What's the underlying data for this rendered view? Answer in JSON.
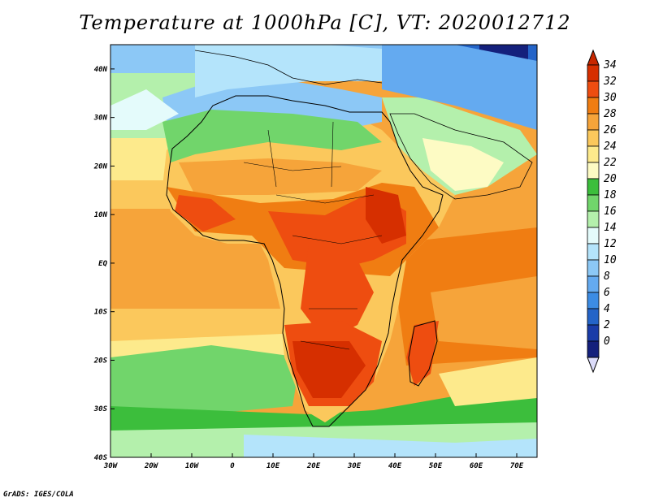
{
  "title": "Temperature at 1000hPa [C], VT: 2020012712",
  "credit": "GrADS: IGES/COLA",
  "map": {
    "projection": "lat-lon",
    "lon_range": [
      -30,
      75
    ],
    "lat_range": [
      -40,
      45
    ],
    "lon_ticks": [
      {
        "value": -30,
        "label": "30W"
      },
      {
        "value": -20,
        "label": "20W"
      },
      {
        "value": -10,
        "label": "10W"
      },
      {
        "value": 0,
        "label": "0"
      },
      {
        "value": 10,
        "label": "10E"
      },
      {
        "value": 20,
        "label": "20E"
      },
      {
        "value": 30,
        "label": "30E"
      },
      {
        "value": 40,
        "label": "40E"
      },
      {
        "value": 50,
        "label": "50E"
      },
      {
        "value": 60,
        "label": "60E"
      },
      {
        "value": 70,
        "label": "70E"
      }
    ],
    "lat_ticks": [
      {
        "value": 40,
        "label": "40N"
      },
      {
        "value": 30,
        "label": "30N"
      },
      {
        "value": 20,
        "label": "20N"
      },
      {
        "value": 10,
        "label": "10N"
      },
      {
        "value": 0,
        "label": "EQ"
      },
      {
        "value": -10,
        "label": "10S"
      },
      {
        "value": -20,
        "label": "20S"
      },
      {
        "value": -30,
        "label": "30S"
      },
      {
        "value": -40,
        "label": "40S"
      }
    ]
  },
  "colorbar": {
    "levels": [
      {
        "value": "34",
        "color": "#d62f00"
      },
      {
        "value": "32",
        "color": "#ee4d10"
      },
      {
        "value": "30",
        "color": "#f07d12"
      },
      {
        "value": "28",
        "color": "#f6a43a"
      },
      {
        "value": "26",
        "color": "#fbc85c"
      },
      {
        "value": "24",
        "color": "#fdea8c"
      },
      {
        "value": "22",
        "color": "#fdfbc4"
      },
      {
        "value": "20",
        "color": "#3cbe3c"
      },
      {
        "value": "18",
        "color": "#71d56b"
      },
      {
        "value": "16",
        "color": "#b4f0ac"
      },
      {
        "value": "14",
        "color": "#e4fbfb"
      },
      {
        "value": "12",
        "color": "#b4e4fb"
      },
      {
        "value": "10",
        "color": "#8cc8f6"
      },
      {
        "value": "8",
        "color": "#64aaf0"
      },
      {
        "value": "6",
        "color": "#3c8ce4"
      },
      {
        "value": "4",
        "color": "#2464c8"
      },
      {
        "value": "2",
        "color": "#1a3ca8"
      },
      {
        "value": "0",
        "color": "#14207c"
      }
    ],
    "top_color": "#c82800",
    "bottom_color": "#dcdcfa"
  }
}
